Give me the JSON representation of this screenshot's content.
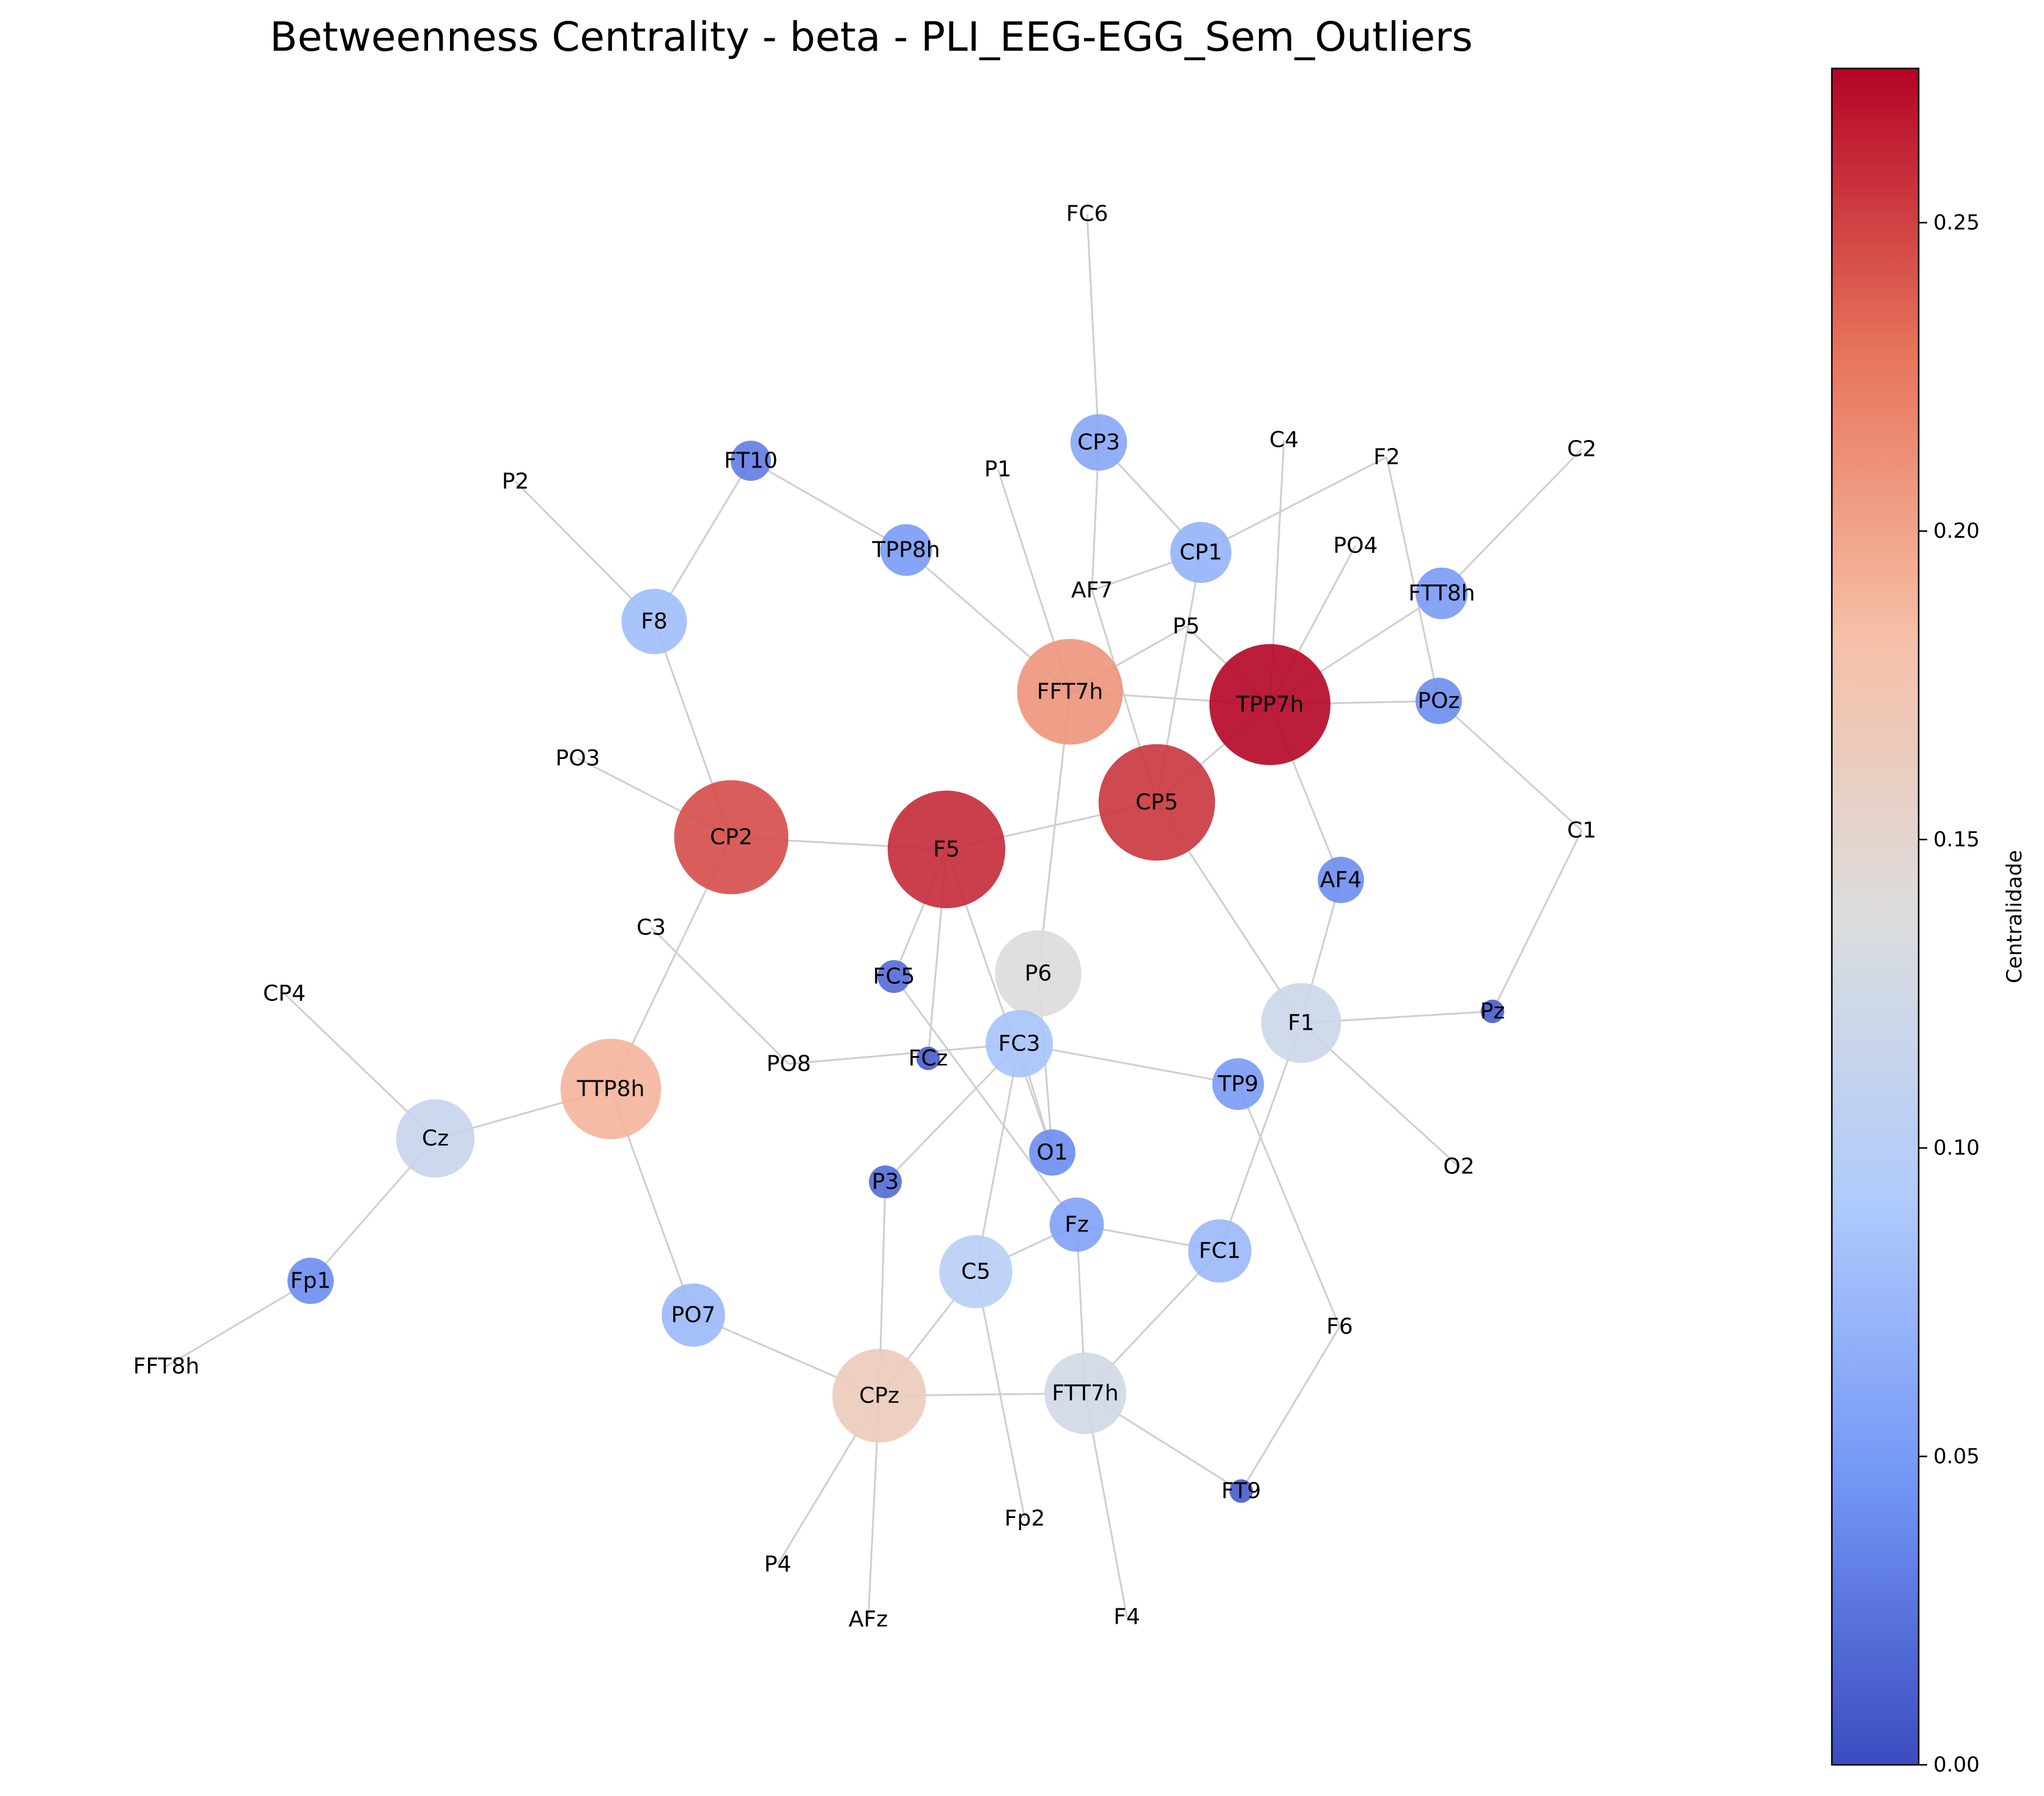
{
  "title": "Betweenness Centrality - beta - PLI_EEG-EGG_Sem_Outliers",
  "colorbar": {
    "label": "Centralidade",
    "min": 0.0,
    "max": 0.275,
    "ticks": [
      "0.00",
      "0.05",
      "0.10",
      "0.15",
      "0.20",
      "0.25"
    ],
    "colormap": "coolwarm",
    "stops": [
      "#3b4cc0",
      "#7396f5",
      "#b0cbfc",
      "#dcdddd",
      "#f6bfa6",
      "#e7745b",
      "#b40426"
    ]
  },
  "nodes": [
    {
      "id": "FC6",
      "value": 0.0
    },
    {
      "id": "CP3",
      "value": 0.06
    },
    {
      "id": "C4",
      "value": 0.0
    },
    {
      "id": "F2",
      "value": 0.0
    },
    {
      "id": "C2",
      "value": 0.0
    },
    {
      "id": "P2",
      "value": 0.0
    },
    {
      "id": "FT10",
      "value": 0.03
    },
    {
      "id": "P1",
      "value": 0.0
    },
    {
      "id": "TPP8h",
      "value": 0.05
    },
    {
      "id": "CP1",
      "value": 0.07
    },
    {
      "id": "PO4",
      "value": 0.0
    },
    {
      "id": "AF7",
      "value": 0.0
    },
    {
      "id": "FTT8h",
      "value": 0.05
    },
    {
      "id": "F8",
      "value": 0.08
    },
    {
      "id": "P5",
      "value": 0.0
    },
    {
      "id": "FFT7h",
      "value": 0.21
    },
    {
      "id": "TPP7h",
      "value": 0.275
    },
    {
      "id": "POz",
      "value": 0.04
    },
    {
      "id": "PO3",
      "value": 0.0
    },
    {
      "id": "CP2",
      "value": 0.245
    },
    {
      "id": "F5",
      "value": 0.26
    },
    {
      "id": "CP5",
      "value": 0.255
    },
    {
      "id": "C1",
      "value": 0.0
    },
    {
      "id": "AF4",
      "value": 0.04
    },
    {
      "id": "C3",
      "value": 0.0
    },
    {
      "id": "P6",
      "value": 0.14
    },
    {
      "id": "FC5",
      "value": 0.02
    },
    {
      "id": "CP4",
      "value": 0.0
    },
    {
      "id": "F1",
      "value": 0.12
    },
    {
      "id": "Pz",
      "value": 0.01
    },
    {
      "id": "FC3",
      "value": 0.085
    },
    {
      "id": "PO8",
      "value": 0.0
    },
    {
      "id": "FCz",
      "value": 0.01
    },
    {
      "id": "TTP8h",
      "value": 0.19
    },
    {
      "id": "TP9",
      "value": 0.05
    },
    {
      "id": "Cz",
      "value": 0.115
    },
    {
      "id": "O1",
      "value": 0.04
    },
    {
      "id": "O2",
      "value": 0.0
    },
    {
      "id": "P3",
      "value": 0.02
    },
    {
      "id": "Fz",
      "value": 0.055
    },
    {
      "id": "FC1",
      "value": 0.075
    },
    {
      "id": "C5",
      "value": 0.1
    },
    {
      "id": "Fp1",
      "value": 0.04
    },
    {
      "id": "PO7",
      "value": 0.075
    },
    {
      "id": "F6",
      "value": 0.0
    },
    {
      "id": "CPz",
      "value": 0.165
    },
    {
      "id": "FTT7h",
      "value": 0.125
    },
    {
      "id": "FFT8h",
      "value": 0.0
    },
    {
      "id": "FT9",
      "value": 0.01
    },
    {
      "id": "Fp2",
      "value": 0.0
    },
    {
      "id": "P4",
      "value": 0.0
    },
    {
      "id": "AFz",
      "value": 0.0
    },
    {
      "id": "F4",
      "value": 0.0
    }
  ],
  "edges": [
    [
      "FC6",
      "CP3"
    ],
    [
      "CP3",
      "CP1"
    ],
    [
      "CP3",
      "AF7"
    ],
    [
      "CP1",
      "F2"
    ],
    [
      "CP1",
      "AF7"
    ],
    [
      "CP1",
      "CP5"
    ],
    [
      "F2",
      "POz"
    ],
    [
      "C2",
      "FTT8h"
    ],
    [
      "FTT8h",
      "TPP7h"
    ],
    [
      "C4",
      "TPP7h"
    ],
    [
      "PO4",
      "TPP7h"
    ],
    [
      "P5",
      "TPP7h"
    ],
    [
      "P5",
      "FFT7h"
    ],
    [
      "FFT7h",
      "TPP7h"
    ],
    [
      "TPP7h",
      "POz"
    ],
    [
      "TPP7h",
      "CP5"
    ],
    [
      "TPP7h",
      "AF4"
    ],
    [
      "POz",
      "C1"
    ],
    [
      "C1",
      "Pz"
    ],
    [
      "Pz",
      "F1"
    ],
    [
      "F1",
      "O2"
    ],
    [
      "F1",
      "AF4"
    ],
    [
      "F1",
      "FC1"
    ],
    [
      "CP5",
      "F1"
    ],
    [
      "CP5",
      "F5"
    ],
    [
      "AF7",
      "CP5"
    ],
    [
      "FT10",
      "F8"
    ],
    [
      "FT10",
      "TPP8h"
    ],
    [
      "TPP8h",
      "FFT7h"
    ],
    [
      "P1",
      "FFT7h"
    ],
    [
      "FFT7h",
      "P6"
    ],
    [
      "P2",
      "F8"
    ],
    [
      "F8",
      "CP2"
    ],
    [
      "PO3",
      "CP2"
    ],
    [
      "CP2",
      "F5"
    ],
    [
      "CP2",
      "TTP8h"
    ],
    [
      "C3",
      "PO8"
    ],
    [
      "PO8",
      "FC3"
    ],
    [
      "F5",
      "FC5"
    ],
    [
      "F5",
      "FCz"
    ],
    [
      "F5",
      "O1"
    ],
    [
      "FC5",
      "Fz"
    ],
    [
      "P6",
      "O1"
    ],
    [
      "FC3",
      "TP9"
    ],
    [
      "FC3",
      "O1"
    ],
    [
      "FC3",
      "P3"
    ],
    [
      "FC3",
      "C5"
    ],
    [
      "TP9",
      "F6"
    ],
    [
      "CP4",
      "Cz"
    ],
    [
      "Cz",
      "TTP8h"
    ],
    [
      "Cz",
      "Fp1"
    ],
    [
      "Fp1",
      "FFT8h"
    ],
    [
      "TTP8h",
      "PO7"
    ],
    [
      "PO7",
      "CPz"
    ],
    [
      "P3",
      "CPz"
    ],
    [
      "C5",
      "Fz"
    ],
    [
      "C5",
      "CPz"
    ],
    [
      "C5",
      "Fp2"
    ],
    [
      "Fz",
      "FC1"
    ],
    [
      "Fz",
      "FTT7h"
    ],
    [
      "FC1",
      "FTT7h"
    ],
    [
      "CPz",
      "FTT7h"
    ],
    [
      "CPz",
      "P4"
    ],
    [
      "CPz",
      "AFz"
    ],
    [
      "FTT7h",
      "FT9"
    ],
    [
      "FTT7h",
      "F4"
    ],
    [
      "F6",
      "FT9"
    ]
  ]
}
